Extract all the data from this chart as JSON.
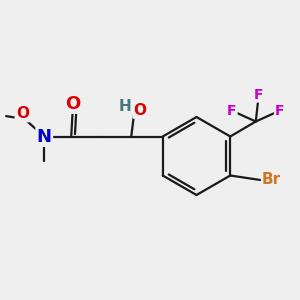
{
  "bg_color": "#efefef",
  "bond_color": "#1a1a1a",
  "bond_width": 1.6,
  "atom_colors": {
    "O": "#dd0000",
    "N": "#0000cc",
    "F": "#cc00cc",
    "Br": "#cc7722",
    "H": "#447777",
    "C": "#1a1a1a"
  },
  "font_size_large": 13,
  "font_size_med": 11,
  "font_size_small": 10
}
